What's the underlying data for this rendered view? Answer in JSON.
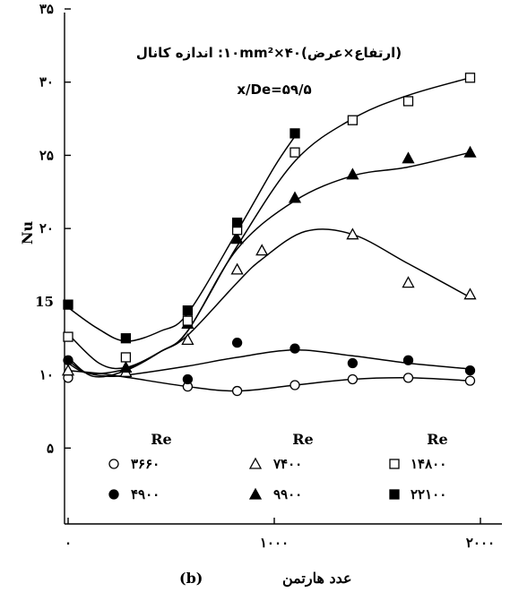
{
  "chart_data": {
    "type": "scatter",
    "xlabel": "عدد هارتمن",
    "ylabel": "Nu",
    "panel_label": "(b)",
    "xlim": [
      0,
      2000
    ],
    "ylim": [
      0,
      35
    ],
    "x_ticks": [
      0,
      1000,
      2000
    ],
    "x_tick_labels": [
      "۰",
      "۱۰۰۰",
      "۲۰۰۰"
    ],
    "y_ticks": [
      5,
      10,
      15,
      20,
      25,
      30,
      35
    ],
    "y_tick_labels": [
      "۵",
      "۱۰",
      "15",
      "۲۰",
      "۲۵",
      "۳۰",
      "۳۵"
    ],
    "annotations": [
      "(ارتفاع×عرض)۴۰×۱۰mm²: اندازه کانال",
      "x/De=۵۹/۵"
    ],
    "legend_header": "Re",
    "series": [
      {
        "name": "۳۶۶۰",
        "marker": "circle-open",
        "x": [
          0,
          580,
          820,
          1100,
          1380,
          1650,
          1950
        ],
        "y": [
          9.8,
          9.2,
          8.9,
          9.3,
          9.7,
          9.8,
          9.6
        ],
        "curve": [
          [
            0,
            10.3
          ],
          [
            150,
            10.1
          ],
          [
            300,
            9.8
          ],
          [
            580,
            9.2
          ],
          [
            820,
            8.9
          ],
          [
            1100,
            9.3
          ],
          [
            1380,
            9.7
          ],
          [
            1650,
            9.8
          ],
          [
            1950,
            9.6
          ]
        ]
      },
      {
        "name": "۴۹۰۰",
        "marker": "circle-filled",
        "x": [
          0,
          580,
          820,
          1100,
          1380,
          1650,
          1950
        ],
        "y": [
          11.0,
          9.7,
          12.2,
          11.8,
          10.8,
          11.0,
          10.3
        ],
        "curve": [
          [
            0,
            11
          ],
          [
            80,
            10.2
          ],
          [
            200,
            9.9
          ],
          [
            320,
            10.05
          ],
          [
            580,
            10.6
          ],
          [
            820,
            11.2
          ],
          [
            1100,
            11.7
          ],
          [
            1380,
            11.3
          ],
          [
            1650,
            10.8
          ],
          [
            1950,
            10.4
          ]
        ]
      },
      {
        "name": "۷۴۰۰",
        "marker": "triangle-open",
        "x": [
          0,
          280,
          580,
          820,
          940,
          1380,
          1650,
          1950
        ],
        "y": [
          10.3,
          10.2,
          12.4,
          17.2,
          18.5,
          19.6,
          16.3,
          15.5
        ],
        "curve": [
          [
            0,
            10.8
          ],
          [
            100,
            10.1
          ],
          [
            280,
            10.4
          ],
          [
            450,
            11.6
          ],
          [
            580,
            12.7
          ],
          [
            820,
            16.3
          ],
          [
            940,
            17.9
          ],
          [
            1150,
            19.8
          ],
          [
            1380,
            19.6
          ],
          [
            1650,
            17.6
          ],
          [
            1950,
            15.3
          ]
        ]
      },
      {
        "name": "۹۹۰۰",
        "marker": "triangle-filled",
        "x": [
          280,
          580,
          820,
          1100,
          1380,
          1650,
          1950
        ],
        "y": [
          10.5,
          13.5,
          19.3,
          22.1,
          23.7,
          24.8,
          25.2
        ],
        "curve": [
          [
            0,
            11.2
          ],
          [
            120,
            9.9
          ],
          [
            280,
            10.3
          ],
          [
            450,
            11.6
          ],
          [
            580,
            13.0
          ],
          [
            820,
            18.6
          ],
          [
            1100,
            21.9
          ],
          [
            1380,
            23.6
          ],
          [
            1650,
            24.2
          ],
          [
            1950,
            25.2
          ]
        ]
      },
      {
        "name": "۱۴۸۰۰",
        "marker": "square-open",
        "x": [
          0,
          280,
          580,
          820,
          1100,
          1380,
          1650,
          1950
        ],
        "y": [
          12.6,
          11.2,
          13.7,
          19.9,
          25.2,
          27.4,
          28.7,
          30.3
        ],
        "curve": [
          [
            0,
            12.8
          ],
          [
            150,
            10.8
          ],
          [
            280,
            10.5
          ],
          [
            450,
            11.6
          ],
          [
            580,
            13.0
          ],
          [
            820,
            18.8
          ],
          [
            1100,
            24.6
          ],
          [
            1380,
            27.5
          ],
          [
            1650,
            29.1
          ],
          [
            1950,
            30.3
          ]
        ]
      },
      {
        "name": "۲۲۱۰۰",
        "marker": "square-filled",
        "x": [
          0,
          280,
          580,
          820,
          1100
        ],
        "y": [
          14.8,
          12.5,
          14.4,
          20.4,
          26.5
        ],
        "curve": [
          [
            0,
            14.6
          ],
          [
            140,
            13.2
          ],
          [
            280,
            12.3
          ],
          [
            450,
            13.0
          ],
          [
            580,
            14.2
          ],
          [
            820,
            19.8
          ],
          [
            1000,
            24.2
          ],
          [
            1100,
            26.3
          ]
        ]
      }
    ]
  }
}
